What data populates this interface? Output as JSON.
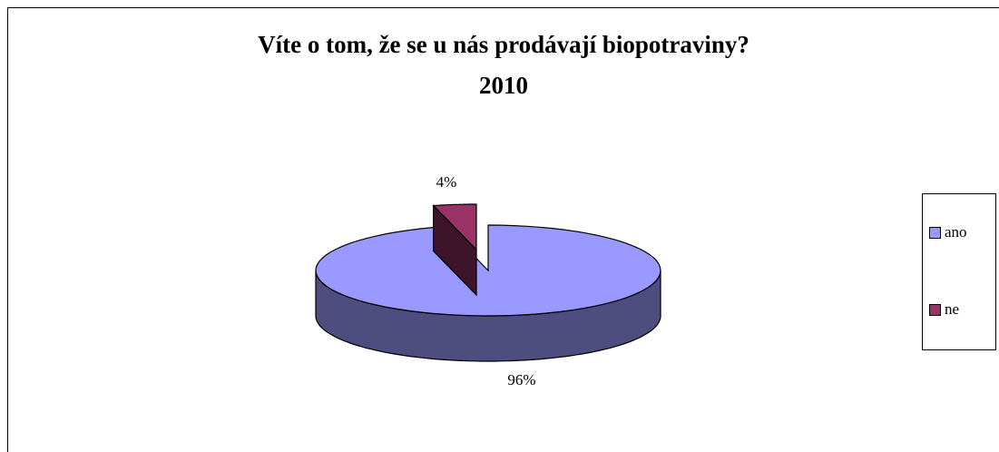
{
  "chart_data": {
    "type": "pie",
    "title": "Víte o tom, že se u nás prodávají biopotraviny?",
    "subtitle": "2010",
    "categories": [
      "ano",
      "ne"
    ],
    "values": [
      96,
      4
    ],
    "value_labels": [
      "96%",
      "4%"
    ],
    "colors": [
      "#9999ff",
      "#993366"
    ],
    "legend": "right"
  }
}
